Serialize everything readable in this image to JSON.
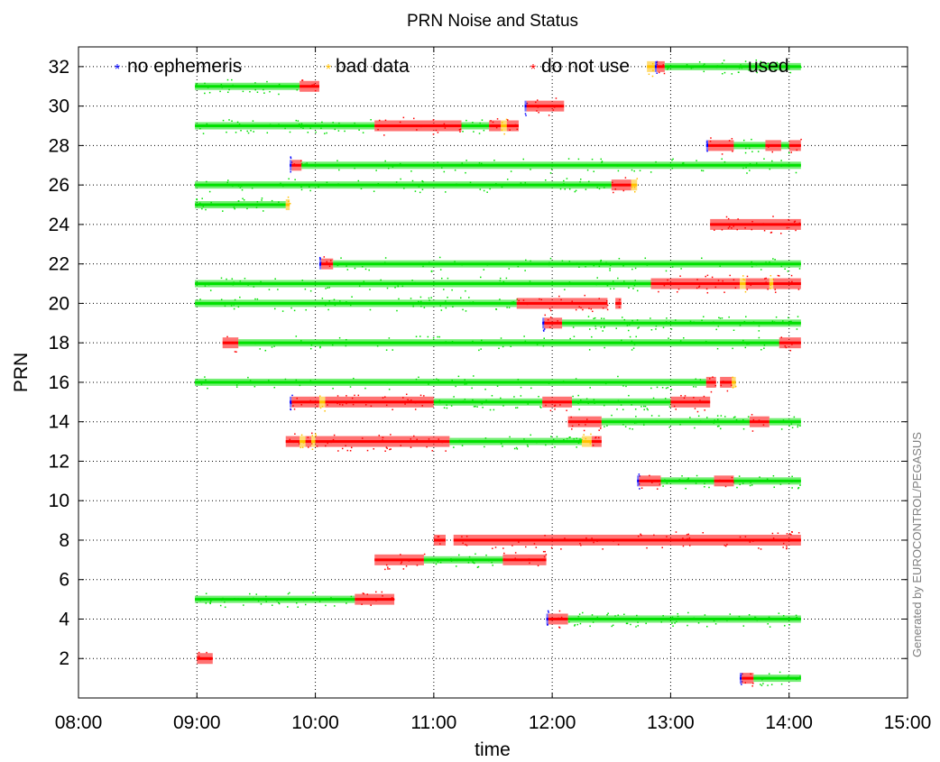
{
  "chart_data": {
    "type": "scatter",
    "title": "PRN Noise and Status",
    "xlabel": "time",
    "ylabel": "PRN",
    "watermark": "Generated by EUROCONTROL/PEGASUS",
    "xlim_hours": [
      8,
      15
    ],
    "ylim": [
      0,
      33
    ],
    "x_ticks": [
      {
        "value": 8,
        "label": "08:00"
      },
      {
        "value": 9,
        "label": "09:00"
      },
      {
        "value": 10,
        "label": "10:00"
      },
      {
        "value": 11,
        "label": "11:00"
      },
      {
        "value": 12,
        "label": "12:00"
      },
      {
        "value": 13,
        "label": "13:00"
      },
      {
        "value": 14,
        "label": "14:00"
      },
      {
        "value": 15,
        "label": "15:00"
      }
    ],
    "y_ticks": [
      2,
      4,
      6,
      8,
      10,
      12,
      14,
      16,
      18,
      20,
      22,
      24,
      26,
      28,
      30,
      32
    ],
    "grid": true,
    "legend_position": "top",
    "legend": [
      {
        "key": "no_ephemeris",
        "label": "no ephemeris",
        "color": "#0000ff"
      },
      {
        "key": "bad_data",
        "label": "bad data",
        "color": "#ffc000"
      },
      {
        "key": "do_not_use",
        "label": "do not use",
        "color": "#ff0000"
      },
      {
        "key": "used",
        "label": "used",
        "color": "#00e000"
      }
    ],
    "series": [
      {
        "prn": 32,
        "segments": [
          {
            "status": "bad_data",
            "start": "12:48",
            "end": "12:52"
          },
          {
            "status": "no_ephemeris",
            "start": "12:52",
            "end": "12:53"
          },
          {
            "status": "do_not_use",
            "start": "12:53",
            "end": "12:57"
          },
          {
            "status": "used",
            "start": "12:57",
            "end": "14:06"
          }
        ]
      },
      {
        "prn": 31,
        "segments": [
          {
            "status": "used",
            "start": "08:59",
            "end": "09:52"
          },
          {
            "status": "do_not_use",
            "start": "09:52",
            "end": "10:02"
          }
        ]
      },
      {
        "prn": 30,
        "segments": [
          {
            "status": "no_ephemeris",
            "start": "11:46",
            "end": "11:47"
          },
          {
            "status": "do_not_use",
            "start": "11:47",
            "end": "12:06"
          }
        ]
      },
      {
        "prn": 29,
        "segments": [
          {
            "status": "used",
            "start": "08:59",
            "end": "10:30"
          },
          {
            "status": "do_not_use",
            "start": "10:30",
            "end": "11:14"
          },
          {
            "status": "used",
            "start": "11:14",
            "end": "11:28"
          },
          {
            "status": "do_not_use",
            "start": "11:28",
            "end": "11:34"
          },
          {
            "status": "bad_data",
            "start": "11:34",
            "end": "11:37"
          },
          {
            "status": "do_not_use",
            "start": "11:37",
            "end": "11:43"
          }
        ]
      },
      {
        "prn": 28,
        "segments": [
          {
            "status": "no_ephemeris",
            "start": "13:18",
            "end": "13:19"
          },
          {
            "status": "do_not_use",
            "start": "13:19",
            "end": "13:32"
          },
          {
            "status": "used",
            "start": "13:32",
            "end": "13:48"
          },
          {
            "status": "do_not_use",
            "start": "13:48",
            "end": "13:56"
          },
          {
            "status": "used",
            "start": "13:56",
            "end": "14:00"
          },
          {
            "status": "do_not_use",
            "start": "14:00",
            "end": "14:06"
          }
        ]
      },
      {
        "prn": 27,
        "segments": [
          {
            "status": "no_ephemeris",
            "start": "09:47",
            "end": "09:48"
          },
          {
            "status": "do_not_use",
            "start": "09:48",
            "end": "09:53"
          },
          {
            "status": "used",
            "start": "09:53",
            "end": "14:06"
          }
        ]
      },
      {
        "prn": 26,
        "segments": [
          {
            "status": "used",
            "start": "08:59",
            "end": "12:30"
          },
          {
            "status": "do_not_use",
            "start": "12:30",
            "end": "12:40"
          },
          {
            "status": "bad_data",
            "start": "12:40",
            "end": "12:43"
          }
        ]
      },
      {
        "prn": 25,
        "segments": [
          {
            "status": "used",
            "start": "08:59",
            "end": "09:45"
          },
          {
            "status": "bad_data",
            "start": "09:45",
            "end": "09:47"
          }
        ]
      },
      {
        "prn": 24,
        "segments": [
          {
            "status": "do_not_use",
            "start": "13:20",
            "end": "14:06"
          }
        ]
      },
      {
        "prn": 22,
        "segments": [
          {
            "status": "no_ephemeris",
            "start": "10:02",
            "end": "10:03"
          },
          {
            "status": "do_not_use",
            "start": "10:03",
            "end": "10:09"
          },
          {
            "status": "used",
            "start": "10:09",
            "end": "14:06"
          }
        ]
      },
      {
        "prn": 21,
        "segments": [
          {
            "status": "used",
            "start": "08:59",
            "end": "12:50"
          },
          {
            "status": "do_not_use",
            "start": "12:50",
            "end": "13:35"
          },
          {
            "status": "bad_data",
            "start": "13:35",
            "end": "13:38"
          },
          {
            "status": "do_not_use",
            "start": "13:38",
            "end": "13:50"
          },
          {
            "status": "bad_data",
            "start": "13:50",
            "end": "13:52"
          },
          {
            "status": "do_not_use",
            "start": "13:52",
            "end": "14:06"
          }
        ]
      },
      {
        "prn": 20,
        "segments": [
          {
            "status": "used",
            "start": "08:59",
            "end": "11:42"
          },
          {
            "status": "do_not_use",
            "start": "11:42",
            "end": "12:28"
          },
          {
            "status": "do_not_use",
            "start": "12:32",
            "end": "12:35"
          }
        ]
      },
      {
        "prn": 19,
        "segments": [
          {
            "status": "no_ephemeris",
            "start": "11:55",
            "end": "11:56"
          },
          {
            "status": "do_not_use",
            "start": "11:56",
            "end": "12:05"
          },
          {
            "status": "used",
            "start": "12:05",
            "end": "14:06"
          }
        ]
      },
      {
        "prn": 18,
        "segments": [
          {
            "status": "do_not_use",
            "start": "09:13",
            "end": "09:21"
          },
          {
            "status": "used",
            "start": "09:21",
            "end": "13:55"
          },
          {
            "status": "do_not_use",
            "start": "13:55",
            "end": "14:06"
          }
        ]
      },
      {
        "prn": 16,
        "segments": [
          {
            "status": "used",
            "start": "08:59",
            "end": "13:18"
          },
          {
            "status": "do_not_use",
            "start": "13:18",
            "end": "13:23"
          },
          {
            "status": "do_not_use",
            "start": "13:25",
            "end": "13:31"
          },
          {
            "status": "bad_data",
            "start": "13:31",
            "end": "13:33"
          }
        ]
      },
      {
        "prn": 15,
        "segments": [
          {
            "status": "no_ephemeris",
            "start": "09:47",
            "end": "09:48"
          },
          {
            "status": "do_not_use",
            "start": "09:48",
            "end": "10:02"
          },
          {
            "status": "bad_data",
            "start": "10:02",
            "end": "10:05"
          },
          {
            "status": "do_not_use",
            "start": "10:05",
            "end": "11:00"
          },
          {
            "status": "used",
            "start": "11:00",
            "end": "11:55"
          },
          {
            "status": "do_not_use",
            "start": "11:55",
            "end": "12:10"
          },
          {
            "status": "used",
            "start": "12:10",
            "end": "13:00"
          },
          {
            "status": "do_not_use",
            "start": "13:00",
            "end": "13:20"
          }
        ]
      },
      {
        "prn": 14,
        "segments": [
          {
            "status": "do_not_use",
            "start": "12:08",
            "end": "12:25"
          },
          {
            "status": "used",
            "start": "12:25",
            "end": "13:40"
          },
          {
            "status": "do_not_use",
            "start": "13:40",
            "end": "13:50"
          },
          {
            "status": "used",
            "start": "13:50",
            "end": "14:06"
          }
        ]
      },
      {
        "prn": 13,
        "segments": [
          {
            "status": "do_not_use",
            "start": "09:45",
            "end": "09:52"
          },
          {
            "status": "bad_data",
            "start": "09:52",
            "end": "09:55"
          },
          {
            "status": "do_not_use",
            "start": "09:55",
            "end": "09:58"
          },
          {
            "status": "bad_data",
            "start": "09:58",
            "end": "10:00"
          },
          {
            "status": "do_not_use",
            "start": "10:00",
            "end": "11:08"
          },
          {
            "status": "used",
            "start": "11:08",
            "end": "12:15"
          },
          {
            "status": "bad_data",
            "start": "12:15",
            "end": "12:20"
          },
          {
            "status": "do_not_use",
            "start": "12:20",
            "end": "12:25"
          }
        ]
      },
      {
        "prn": 11,
        "segments": [
          {
            "status": "no_ephemeris",
            "start": "12:43",
            "end": "12:44"
          },
          {
            "status": "do_not_use",
            "start": "12:44",
            "end": "12:55"
          },
          {
            "status": "used",
            "start": "12:55",
            "end": "13:22"
          },
          {
            "status": "do_not_use",
            "start": "13:22",
            "end": "13:32"
          },
          {
            "status": "used",
            "start": "13:32",
            "end": "14:06"
          }
        ]
      },
      {
        "prn": 8,
        "segments": [
          {
            "status": "do_not_use",
            "start": "11:00",
            "end": "11:06"
          },
          {
            "status": "do_not_use",
            "start": "11:10",
            "end": "14:06"
          }
        ]
      },
      {
        "prn": 7,
        "segments": [
          {
            "status": "do_not_use",
            "start": "10:30",
            "end": "10:55"
          },
          {
            "status": "used",
            "start": "10:55",
            "end": "11:35"
          },
          {
            "status": "do_not_use",
            "start": "11:35",
            "end": "11:57"
          }
        ]
      },
      {
        "prn": 5,
        "segments": [
          {
            "status": "used",
            "start": "08:59",
            "end": "10:20"
          },
          {
            "status": "do_not_use",
            "start": "10:20",
            "end": "10:40"
          }
        ]
      },
      {
        "prn": 4,
        "segments": [
          {
            "status": "no_ephemeris",
            "start": "11:57",
            "end": "11:58"
          },
          {
            "status": "do_not_use",
            "start": "11:58",
            "end": "12:08"
          },
          {
            "status": "used",
            "start": "12:08",
            "end": "14:06"
          }
        ]
      },
      {
        "prn": 2,
        "segments": [
          {
            "status": "do_not_use",
            "start": "09:00",
            "end": "09:08"
          }
        ]
      },
      {
        "prn": 1,
        "segments": [
          {
            "status": "no_ephemeris",
            "start": "13:35",
            "end": "13:36"
          },
          {
            "status": "do_not_use",
            "start": "13:36",
            "end": "13:42"
          },
          {
            "status": "used",
            "start": "13:42",
            "end": "14:06"
          }
        ]
      }
    ]
  }
}
